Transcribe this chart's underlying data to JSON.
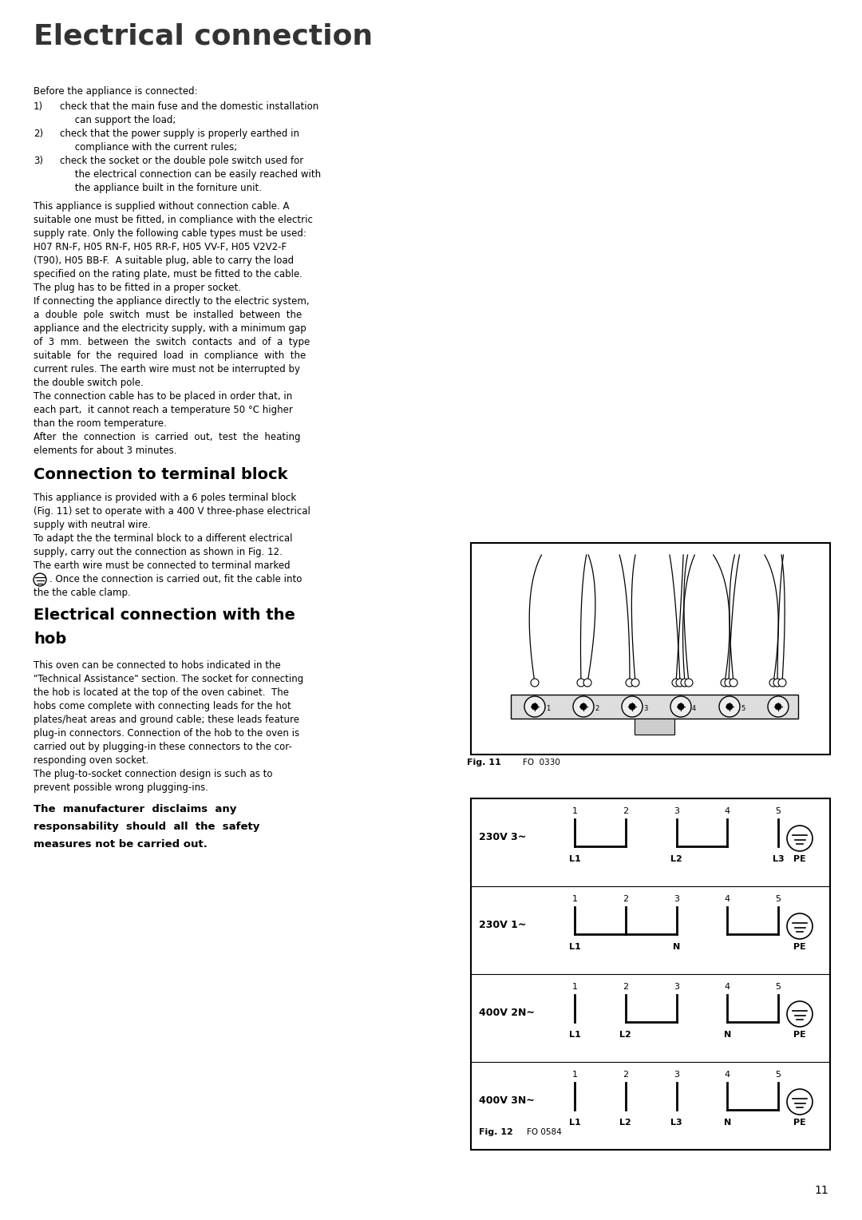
{
  "title": "Electrical connection",
  "bg_color": "#ffffff",
  "text_color": "#000000",
  "page_number": "11",
  "fig11_label": "Fig. 11",
  "fig11_code": "FO  0330",
  "fig12_label": "Fig. 12",
  "fig12_code": "FO 0584"
}
